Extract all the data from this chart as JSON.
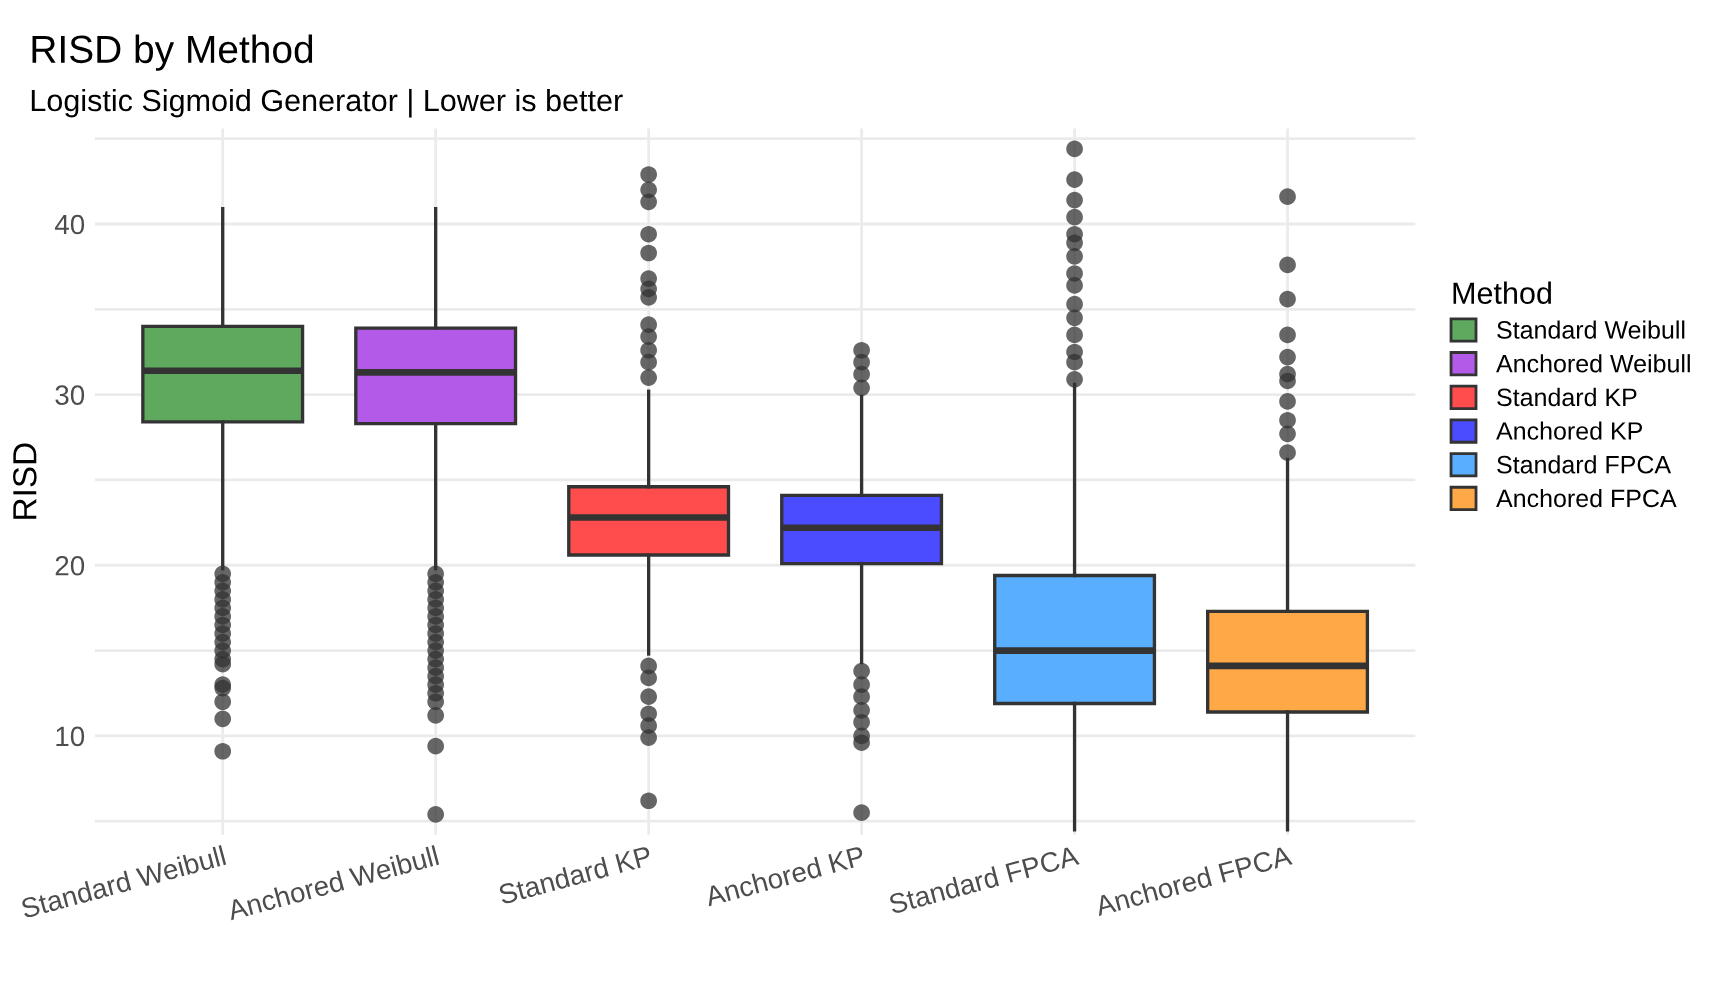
{
  "chart_data": {
    "type": "box",
    "title": "RISD by Method",
    "subtitle": "Logistic Sigmoid Generator | Lower is better",
    "ylabel": "RISD",
    "legend_title": "Method",
    "legend": "right",
    "grid": true,
    "categories": [
      "Standard Weibull",
      "Anchored Weibull",
      "Standard KP",
      "Anchored KP",
      "Standard FPCA",
      "Anchored FPCA"
    ],
    "ylim": [
      4.2,
      45.6
    ],
    "yticks": [
      {
        "value": 5,
        "label": null
      },
      10,
      {
        "value": 15,
        "label": null
      },
      20,
      {
        "value": 25,
        "label": null
      },
      30,
      {
        "value": 35,
        "label": null
      },
      40,
      {
        "value": 45,
        "label": null
      }
    ],
    "series": [
      {
        "name": "Standard Weibull",
        "color": "#5fa95f",
        "boxes": [
          {
            "low": 19.8,
            "q1": 28.4,
            "median": 31.4,
            "q3": 34.0,
            "high": 40.9,
            "outliers": [
              19.5,
              19.0,
              18.5,
              18.0,
              17.5,
              17.0,
              16.5,
              16.0,
              15.5,
              15.0,
              14.5,
              14.2,
              13.0,
              12.8,
              12.0,
              11.0,
              9.1
            ]
          },
          null,
          null,
          null,
          null,
          null
        ]
      },
      {
        "name": "Anchored Weibull",
        "color": "#b45ae8",
        "boxes": [
          null,
          {
            "low": 19.8,
            "q1": 28.3,
            "median": 31.3,
            "q3": 33.9,
            "high": 40.9,
            "outliers": [
              19.5,
              19.0,
              18.5,
              18.0,
              17.5,
              17.0,
              16.5,
              16.0,
              15.5,
              15.0,
              14.5,
              14.0,
              13.5,
              13.0,
              12.5,
              12.0,
              11.2,
              9.4,
              5.4
            ]
          },
          null,
          null,
          null,
          null
        ]
      },
      {
        "name": "Standard KP",
        "color": "#ff4d4d",
        "boxes": [
          null,
          null,
          {
            "low": 14.8,
            "q1": 20.6,
            "median": 22.8,
            "q3": 24.6,
            "high": 30.2,
            "outliers": [
              42.9,
              42.0,
              41.3,
              39.4,
              38.3,
              36.8,
              36.2,
              35.7,
              34.1,
              33.4,
              32.6,
              31.9,
              31.0,
              14.1,
              13.4,
              12.3,
              11.3,
              10.6,
              9.9,
              6.2
            ]
          },
          null,
          null,
          null
        ]
      },
      {
        "name": "Anchored KP",
        "color": "#4b4bff",
        "boxes": [
          null,
          null,
          null,
          {
            "low": 14.3,
            "q1": 20.1,
            "median": 22.2,
            "q3": 24.1,
            "high": 29.9,
            "outliers": [
              32.6,
              31.9,
              31.2,
              30.4,
              13.8,
              13.0,
              12.3,
              11.5,
              10.8,
              10.0,
              9.6,
              5.5
            ]
          },
          null,
          null
        ]
      },
      {
        "name": "Standard FPCA",
        "color": "#5aaeff",
        "boxes": [
          null,
          null,
          null,
          null,
          {
            "low": 4.5,
            "q1": 11.9,
            "median": 15.0,
            "q3": 19.4,
            "high": 30.6,
            "outliers": [
              44.4,
              42.6,
              41.4,
              40.4,
              39.4,
              38.9,
              38.1,
              37.1,
              36.4,
              35.3,
              34.5,
              33.5,
              32.5,
              31.9,
              30.9
            ]
          },
          null
        ]
      },
      {
        "name": "Anchored FPCA",
        "color": "#ffa847",
        "boxes": [
          null,
          null,
          null,
          null,
          null,
          {
            "low": 4.5,
            "q1": 11.4,
            "median": 14.1,
            "q3": 17.3,
            "high": 26.2,
            "outliers": [
              41.6,
              37.6,
              35.6,
              33.5,
              32.2,
              31.2,
              30.8,
              29.6,
              28.5,
              27.7,
              26.6
            ]
          }
        ]
      }
    ]
  }
}
